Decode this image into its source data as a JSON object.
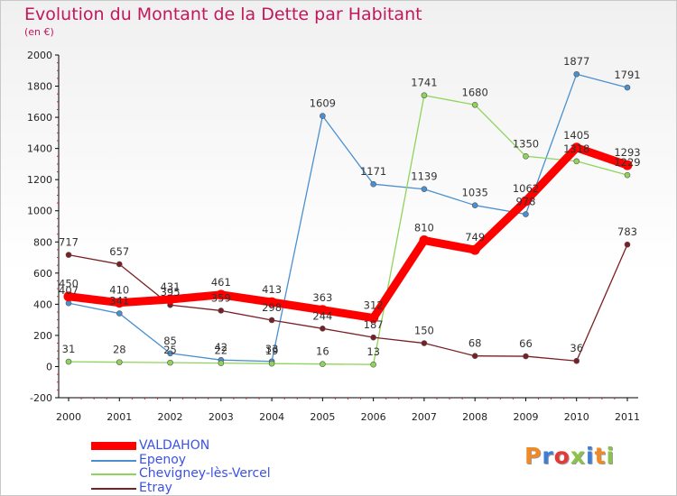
{
  "page": {
    "title": "Evolution du Montant de la Dette par Habitant",
    "subtitle": "(en €)"
  },
  "logo": {
    "letters": [
      "P",
      "r",
      "o",
      "x",
      "i",
      "t",
      "i"
    ],
    "colors": [
      "#f08a24",
      "#3b7fd8",
      "#e53935",
      "#8bc34a",
      "#3b7fd8",
      "#f08a24",
      "#8bc34a"
    ]
  },
  "chart_data": {
    "type": "line",
    "title": "Evolution du Montant de la Dette par Habitant",
    "subtitle": "(en €)",
    "x": [
      "2000",
      "2001",
      "2002",
      "2003",
      "2004",
      "2005",
      "2006",
      "2007",
      "2008",
      "2009",
      "2010",
      "2011"
    ],
    "ylim": [
      -200,
      2000
    ],
    "yticks": [
      -200,
      0,
      200,
      400,
      600,
      800,
      1000,
      1200,
      1400,
      1600,
      1800,
      2000
    ],
    "grid": false,
    "legend": "bottom-left",
    "series": [
      {
        "name": "VALDAHON",
        "color": "#ff0000",
        "thick": true,
        "values": [
          450,
          410,
          431,
          461,
          413,
          363,
          312,
          810,
          749,
          1062,
          1405,
          1293
        ],
        "labels": [
          "450",
          "410",
          "431",
          "461",
          "413",
          "363",
          "312",
          "810",
          "749",
          "1062",
          "1405",
          "1293"
        ]
      },
      {
        "name": "Epenoy",
        "color": "#4a90d0",
        "values": [
          407,
          341,
          85,
          42,
          33,
          1609,
          1171,
          1139,
          1035,
          978,
          1877,
          1791
        ],
        "labels": [
          "407",
          "341",
          "85",
          "42",
          "33",
          "1609",
          "1171",
          "1139",
          "1035",
          "978",
          "1877",
          "1791"
        ]
      },
      {
        "name": "Chevigney-lès-Vercel",
        "color": "#8fd45a",
        "values": [
          31,
          28,
          25,
          22,
          19,
          16,
          13,
          1741,
          1680,
          1350,
          1318,
          1229
        ],
        "labels": [
          "31",
          "28",
          "25",
          "22",
          "19",
          "16",
          "13",
          "1741",
          "1680",
          "1350",
          "1318",
          "1229"
        ]
      },
      {
        "name": "Etray",
        "color": "#7a1f23",
        "values": [
          717,
          657,
          395,
          359,
          298,
          244,
          187,
          150,
          68,
          66,
          36,
          783
        ],
        "labels": [
          "717",
          "657",
          "395",
          "359",
          "298",
          "244",
          "187",
          "150",
          "68",
          "66",
          "36",
          "783"
        ]
      }
    ]
  }
}
